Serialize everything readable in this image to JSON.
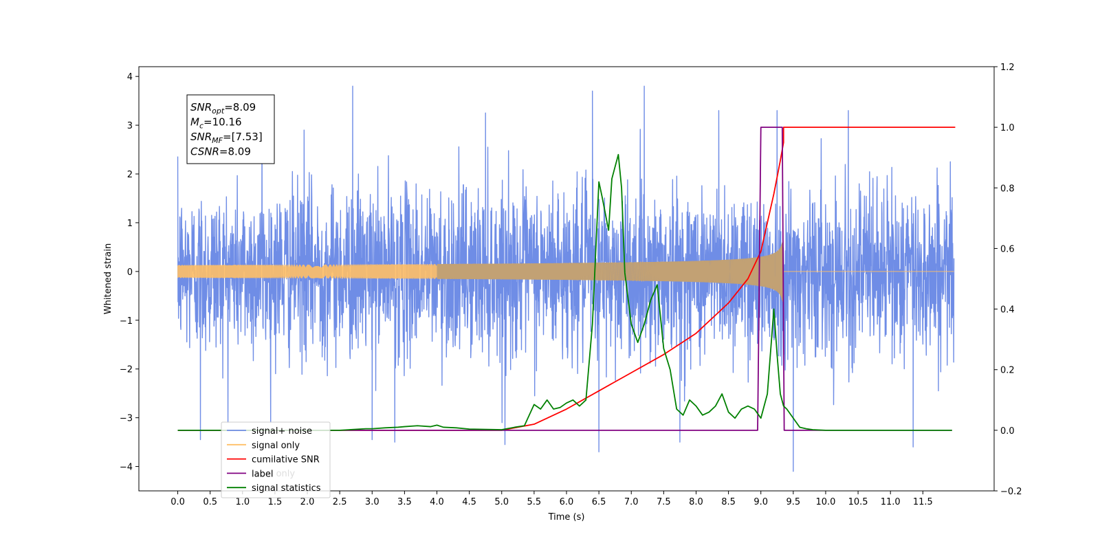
{
  "chart_data": {
    "type": "line",
    "xlabel": "Time (s)",
    "ylabel_left": "Whitened strain",
    "xlim": [
      -0.6,
      12.6
    ],
    "ylim_left": [
      -4.5,
      4.2
    ],
    "ylim_right": [
      -0.2,
      1.2
    ],
    "xticks": [
      "0.0",
      "0.5",
      "1.0",
      "1.5",
      "2.0",
      "2.5",
      "3.0",
      "3.5",
      "4.0",
      "4.5",
      "5.0",
      "5.5",
      "6.0",
      "6.5",
      "7.0",
      "7.5",
      "8.0",
      "8.5",
      "9.0",
      "9.5",
      "10.0",
      "10.5",
      "11.0",
      "11.5"
    ],
    "yticks_left": [
      "4",
      "3",
      "2",
      "1",
      "0",
      "−1",
      "−2",
      "−3",
      "−4"
    ],
    "yticks_right": [
      "1.2",
      "1.0",
      "0.8",
      "0.6",
      "0.4",
      "0.2",
      "0.0",
      "−0.2"
    ],
    "grid": false,
    "legend_position": "lower-left",
    "annotation": {
      "lines": [
        {
          "sym": "SNR",
          "sub": "opt",
          "val": "=8.09"
        },
        {
          "sym": "M",
          "sub": "c",
          "val": "=10.16"
        },
        {
          "sym": "SNR",
          "sub": "MF",
          "val": "=[7.53]"
        },
        {
          "sym": "CSNR",
          "sub": "",
          "val": "=8.09"
        }
      ]
    },
    "series": [
      {
        "name": "signal+ noise",
        "axis": "left",
        "color": "#6f8de6",
        "x_range": [
          0.0,
          11.98
        ],
        "noise_sigma": 0.85,
        "peak_points": [
          [
            0.35,
            -3.45
          ],
          [
            1.3,
            3.15
          ],
          [
            1.95,
            2.9
          ],
          [
            2.7,
            3.8
          ],
          [
            3.0,
            -3.45
          ],
          [
            3.35,
            -3.5
          ],
          [
            4.75,
            3.25
          ],
          [
            5.05,
            -3.55
          ],
          [
            6.4,
            3.7
          ],
          [
            6.5,
            -3.7
          ],
          [
            7.2,
            3.8
          ],
          [
            7.75,
            -3.5
          ],
          [
            8.35,
            3.3
          ],
          [
            9.25,
            3.3
          ],
          [
            9.5,
            -4.1
          ],
          [
            10.35,
            3.3
          ],
          [
            11.35,
            -3.6
          ]
        ]
      },
      {
        "name": "signal only",
        "axis": "left",
        "color": "#ffbf66",
        "x_range": [
          0.0,
          11.98
        ],
        "chirp_end": 9.35,
        "amplitude_at_end": 0.62
      },
      {
        "name": "cumilative SNR",
        "axis": "right",
        "color": "#ff0000",
        "x": [
          0.0,
          5.0,
          5.5,
          6.0,
          6.5,
          7.0,
          7.5,
          8.0,
          8.5,
          8.8,
          9.0,
          9.2,
          9.3,
          9.35,
          9.35,
          12.0
        ],
        "y": [
          0.0,
          0.0,
          0.02,
          0.07,
          0.13,
          0.19,
          0.25,
          0.32,
          0.42,
          0.5,
          0.59,
          0.78,
          0.89,
          0.95,
          1.0,
          1.0
        ]
      },
      {
        "name": "label",
        "axis": "right",
        "color": "#800080",
        "x": [
          0.0,
          8.95,
          9.0,
          9.33,
          9.36,
          11.95
        ],
        "y": [
          0.0,
          0.0,
          1.0,
          1.0,
          0.0,
          0.0
        ]
      },
      {
        "name": "signal statistics",
        "axis": "right",
        "color": "#008000",
        "x": [
          0.0,
          2.5,
          2.9,
          3.0,
          3.2,
          3.4,
          3.5,
          3.7,
          3.9,
          4.0,
          4.1,
          4.3,
          4.5,
          5.0,
          5.2,
          5.35,
          5.5,
          5.6,
          5.7,
          5.8,
          5.9,
          6.0,
          6.1,
          6.2,
          6.3,
          6.4,
          6.5,
          6.55,
          6.65,
          6.7,
          6.8,
          6.85,
          6.9,
          7.0,
          7.1,
          7.2,
          7.3,
          7.4,
          7.5,
          7.6,
          7.7,
          7.8,
          7.9,
          8.0,
          8.1,
          8.2,
          8.3,
          8.4,
          8.5,
          8.6,
          8.7,
          8.8,
          8.9,
          9.0,
          9.1,
          9.2,
          9.25,
          9.3,
          9.35,
          9.4,
          9.5,
          9.6,
          9.7,
          9.8,
          10.0,
          11.95
        ],
        "y": [
          0.0,
          0.0,
          0.005,
          0.005,
          0.008,
          0.01,
          0.012,
          0.015,
          0.012,
          0.017,
          0.01,
          0.008,
          0.004,
          0.002,
          0.01,
          0.015,
          0.085,
          0.07,
          0.1,
          0.07,
          0.075,
          0.09,
          0.1,
          0.08,
          0.1,
          0.35,
          0.82,
          0.77,
          0.66,
          0.83,
          0.91,
          0.8,
          0.52,
          0.35,
          0.29,
          0.35,
          0.43,
          0.48,
          0.27,
          0.2,
          0.07,
          0.05,
          0.1,
          0.08,
          0.05,
          0.06,
          0.08,
          0.12,
          0.06,
          0.04,
          0.07,
          0.08,
          0.07,
          0.04,
          0.12,
          0.4,
          0.25,
          0.12,
          0.08,
          0.07,
          0.04,
          0.01,
          0.005,
          0.002,
          0.0,
          0.0
        ]
      },
      {
        "name": "label only",
        "axis": "right",
        "color": "#ffffff",
        "legend_only": true
      }
    ],
    "legend": [
      {
        "name": "signal+ noise",
        "color": "#6f8de6"
      },
      {
        "name": "signal only",
        "color": "#ffbf66"
      },
      {
        "name": "cumilative SNR",
        "color": "#ff0000"
      },
      {
        "name": "label",
        "color": "#800080"
      },
      {
        "name": "signal statistics",
        "color": "#008000"
      }
    ],
    "hidden_legend_text": "label only"
  }
}
